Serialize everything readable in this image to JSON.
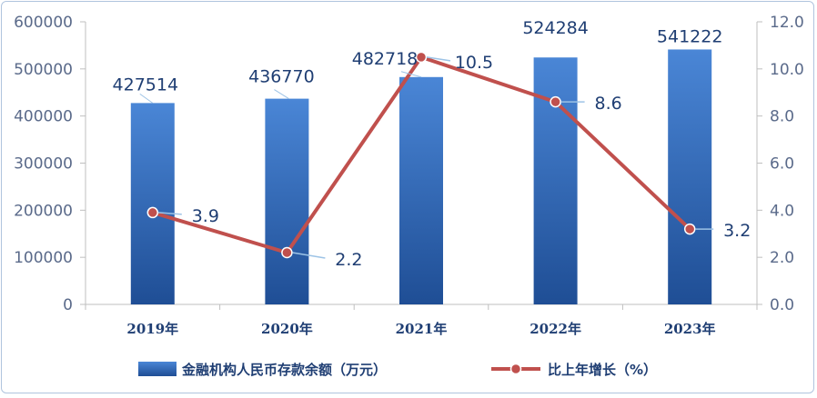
{
  "chart_data": {
    "type": "bar+line",
    "categories": [
      "2019年",
      "2020年",
      "2021年",
      "2022年",
      "2023年"
    ],
    "series": [
      {
        "name": "金融机构人民币存款余额（万元）",
        "type": "bar",
        "axis": "left",
        "values": [
          427514,
          436770,
          482718,
          524284,
          541222
        ],
        "labels": [
          "427514",
          "436770",
          "482718",
          "524284",
          "541222"
        ]
      },
      {
        "name": "比上年增长（%）",
        "type": "line",
        "axis": "right",
        "values": [
          3.9,
          2.2,
          10.5,
          8.6,
          3.2
        ],
        "labels": [
          "3.9",
          "2.2",
          "10.5",
          "8.6",
          "3.2"
        ]
      }
    ],
    "y_left": {
      "range": [
        0,
        600000
      ],
      "ticks": [
        "0",
        "100000",
        "200000",
        "300000",
        "400000",
        "500000",
        "600000"
      ]
    },
    "y_right": {
      "range": [
        0,
        12
      ],
      "ticks": [
        "0.0",
        "2.0",
        "4.0",
        "6.0",
        "8.0",
        "10.0",
        "12.0"
      ]
    },
    "grid": false,
    "legend_position": "bottom",
    "colors": {
      "bar_top": "#4a86d6",
      "bar_bottom": "#1f4e95",
      "line": "#c0504d",
      "leader": "#9dc3e6",
      "axis": "#bfbfbf"
    }
  }
}
